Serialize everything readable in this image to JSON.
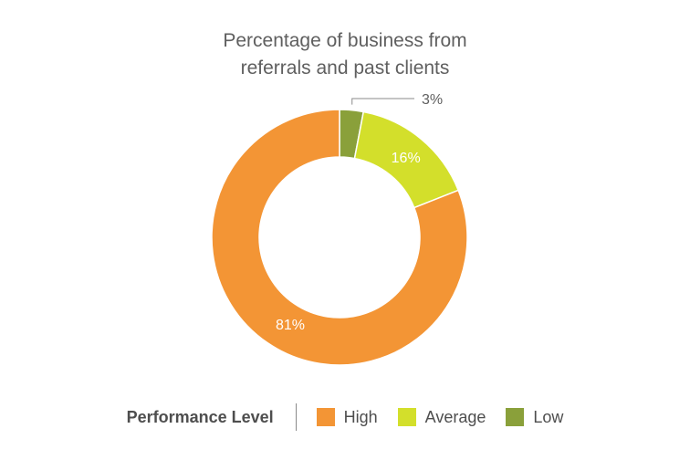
{
  "chart_data": {
    "type": "pie",
    "title": [
      "Percentage of business from",
      "referrals and past clients"
    ],
    "legend_title": "Performance Level",
    "legend_position": "bottom",
    "series": [
      {
        "name": "High",
        "value": 81,
        "label": "81%",
        "color": "#f39535"
      },
      {
        "name": "Average",
        "value": 16,
        "label": "16%",
        "color": "#d3df2b"
      },
      {
        "name": "Low",
        "value": 3,
        "label": "3%",
        "color": "#8aa03a"
      }
    ]
  }
}
